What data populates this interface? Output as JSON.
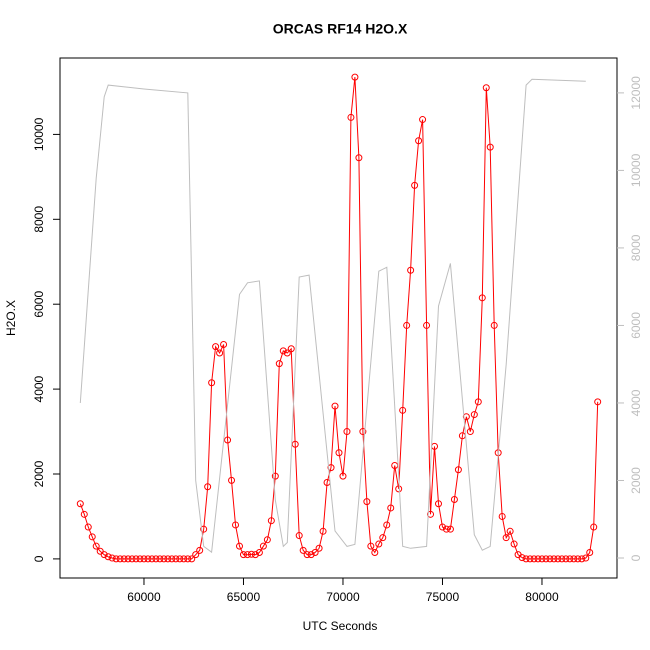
{
  "chart_data": {
    "type": "line",
    "title": "ORCAS RF14 H2O.X",
    "xlabel": "UTC Seconds",
    "ylabel": "H2O.X",
    "xlim": [
      55780,
      83770
    ],
    "ylim": [
      -450,
      11800
    ],
    "y2lim": [
      -516,
      12900
    ],
    "xticks": [
      60000,
      65000,
      70000,
      75000,
      80000
    ],
    "yticks": [
      0,
      2000,
      4000,
      6000,
      8000,
      10000
    ],
    "y2ticks": [
      0,
      2000,
      4000,
      6000,
      8000,
      10000,
      12000
    ],
    "series": [
      {
        "name": "H2O.X",
        "color": "#ff0000",
        "markers": true,
        "x": [
          56800,
          57000,
          57200,
          57400,
          57600,
          57800,
          58000,
          58200,
          58400,
          58600,
          58800,
          59000,
          59200,
          59400,
          59600,
          59800,
          60000,
          60200,
          60400,
          60600,
          60800,
          61000,
          61200,
          61400,
          61600,
          61800,
          62000,
          62200,
          62400,
          62600,
          62800,
          63000,
          63200,
          63400,
          63600,
          63800,
          64000,
          64200,
          64400,
          64600,
          64800,
          65000,
          65200,
          65400,
          65600,
          65800,
          66000,
          66200,
          66400,
          66600,
          66800,
          67000,
          67200,
          67400,
          67600,
          67800,
          68000,
          68200,
          68400,
          68600,
          68800,
          69000,
          69200,
          69400,
          69600,
          69800,
          70000,
          70200,
          70400,
          70600,
          70800,
          71000,
          71200,
          71400,
          71600,
          71800,
          72000,
          72200,
          72400,
          72600,
          72800,
          73000,
          73200,
          73400,
          73600,
          73800,
          74000,
          74200,
          74400,
          74600,
          74800,
          75000,
          75200,
          75400,
          75600,
          75800,
          76000,
          76200,
          76400,
          76600,
          76800,
          77000,
          77200,
          77400,
          77600,
          77800,
          78000,
          78200,
          78400,
          78600,
          78800,
          79000,
          79200,
          79400,
          79600,
          79800,
          80000,
          80200,
          80400,
          80600,
          80800,
          81000,
          81200,
          81400,
          81600,
          81800,
          82000,
          82200,
          82400,
          82600,
          82800
        ],
        "values": [
          1300,
          1050,
          750,
          520,
          300,
          180,
          100,
          50,
          20,
          0,
          0,
          0,
          0,
          0,
          0,
          0,
          0,
          0,
          0,
          0,
          0,
          0,
          0,
          0,
          0,
          0,
          0,
          0,
          0,
          100,
          200,
          700,
          1700,
          4150,
          5000,
          4850,
          5050,
          2800,
          1850,
          800,
          300,
          100,
          100,
          110,
          100,
          150,
          300,
          450,
          900,
          1950,
          4600,
          4900,
          4850,
          4950,
          2700,
          550,
          200,
          100,
          100,
          150,
          250,
          650,
          1800,
          2150,
          3600,
          2500,
          1950,
          3000,
          10400,
          11350,
          9450,
          3000,
          1350,
          300,
          150,
          350,
          500,
          800,
          1200,
          2200,
          1650,
          3500,
          5500,
          6800,
          8800,
          9850,
          10350,
          5500,
          1050,
          2650,
          1300,
          750,
          700,
          700,
          1400,
          2100,
          2900,
          3350,
          3000,
          3400,
          3700,
          6150,
          11100,
          9700,
          5500,
          2500,
          1000,
          500,
          650,
          350,
          100,
          30,
          0,
          0,
          0,
          0,
          0,
          0,
          0,
          0,
          0,
          0,
          0,
          0,
          0,
          0,
          0,
          20,
          150,
          750,
          3700
        ]
      },
      {
        "color": "#bebebe",
        "axis": "y2",
        "markers": false,
        "x": [
          56800,
          57600,
          58000,
          58200,
          60000,
          62200,
          62600,
          63000,
          63400,
          64800,
          65200,
          65800,
          66600,
          67000,
          67200,
          67800,
          68300,
          69600,
          70200,
          70600,
          71800,
          72200,
          73000,
          73400,
          74200,
          74800,
          75400,
          76600,
          77000,
          77400,
          78200,
          79200,
          79500,
          82200
        ],
        "values": [
          4000,
          9800,
          11900,
          12200,
          12100,
          12000,
          2000,
          300,
          150,
          6800,
          7100,
          7150,
          1500,
          300,
          400,
          7250,
          7300,
          700,
          300,
          350,
          7400,
          7500,
          300,
          250,
          300,
          6500,
          7600,
          600,
          200,
          300,
          5000,
          12200,
          12350,
          12300
        ]
      }
    ]
  }
}
